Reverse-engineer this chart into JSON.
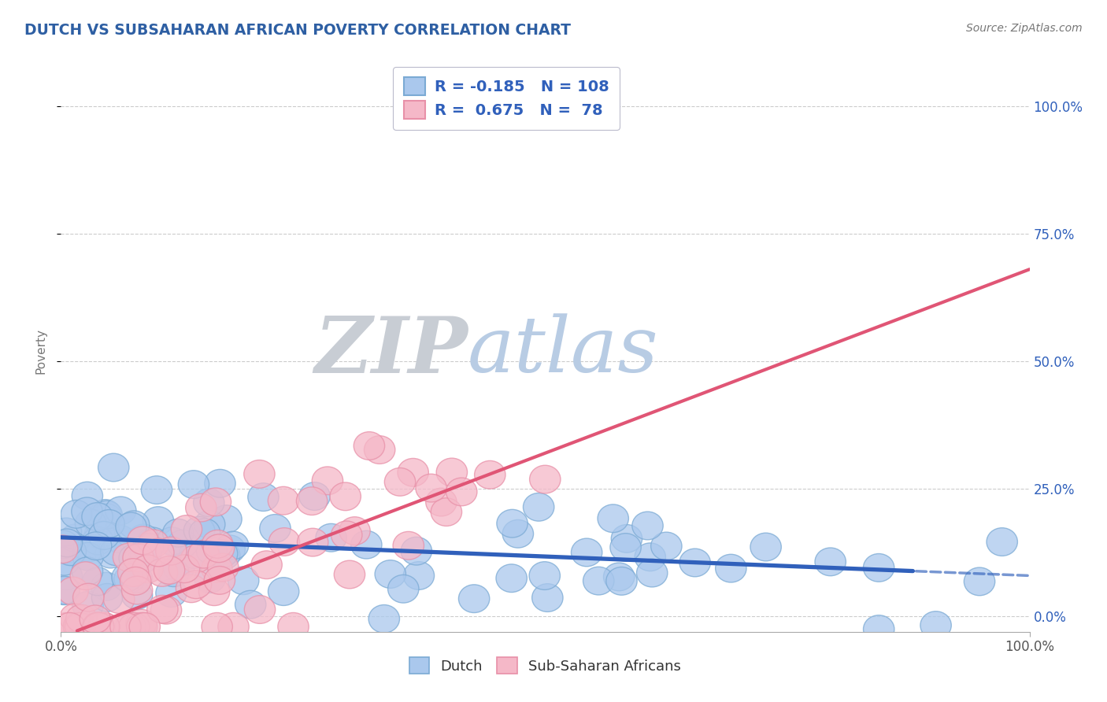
{
  "title": "DUTCH VS SUBSAHARAN AFRICAN POVERTY CORRELATION CHART",
  "source_text": "Source: ZipAtlas.com",
  "ylabel": "Poverty",
  "title_color": "#2e5fa3",
  "title_fontsize": 13.5,
  "background_color": "#ffffff",
  "plot_bg_color": "#ffffff",
  "grid_color": "#cccccc",
  "dutch_R": -0.185,
  "dutch_N": 108,
  "subsaharan_R": 0.675,
  "subsaharan_N": 78,
  "dutch_color": "#aac8ed",
  "dutch_edge_color": "#7baad4",
  "dutch_line_color": "#3060bb",
  "subsaharan_color": "#f5b8c8",
  "subsaharan_edge_color": "#e890a8",
  "subsaharan_line_color": "#e05575",
  "watermark_ZIP_color": "#c8cdd4",
  "watermark_atlas_color": "#b8cce4",
  "dutch_intercept": 0.155,
  "dutch_slope": -0.075,
  "subsaharan_intercept": -0.04,
  "subsaharan_slope": 0.72,
  "line_split": 0.88
}
